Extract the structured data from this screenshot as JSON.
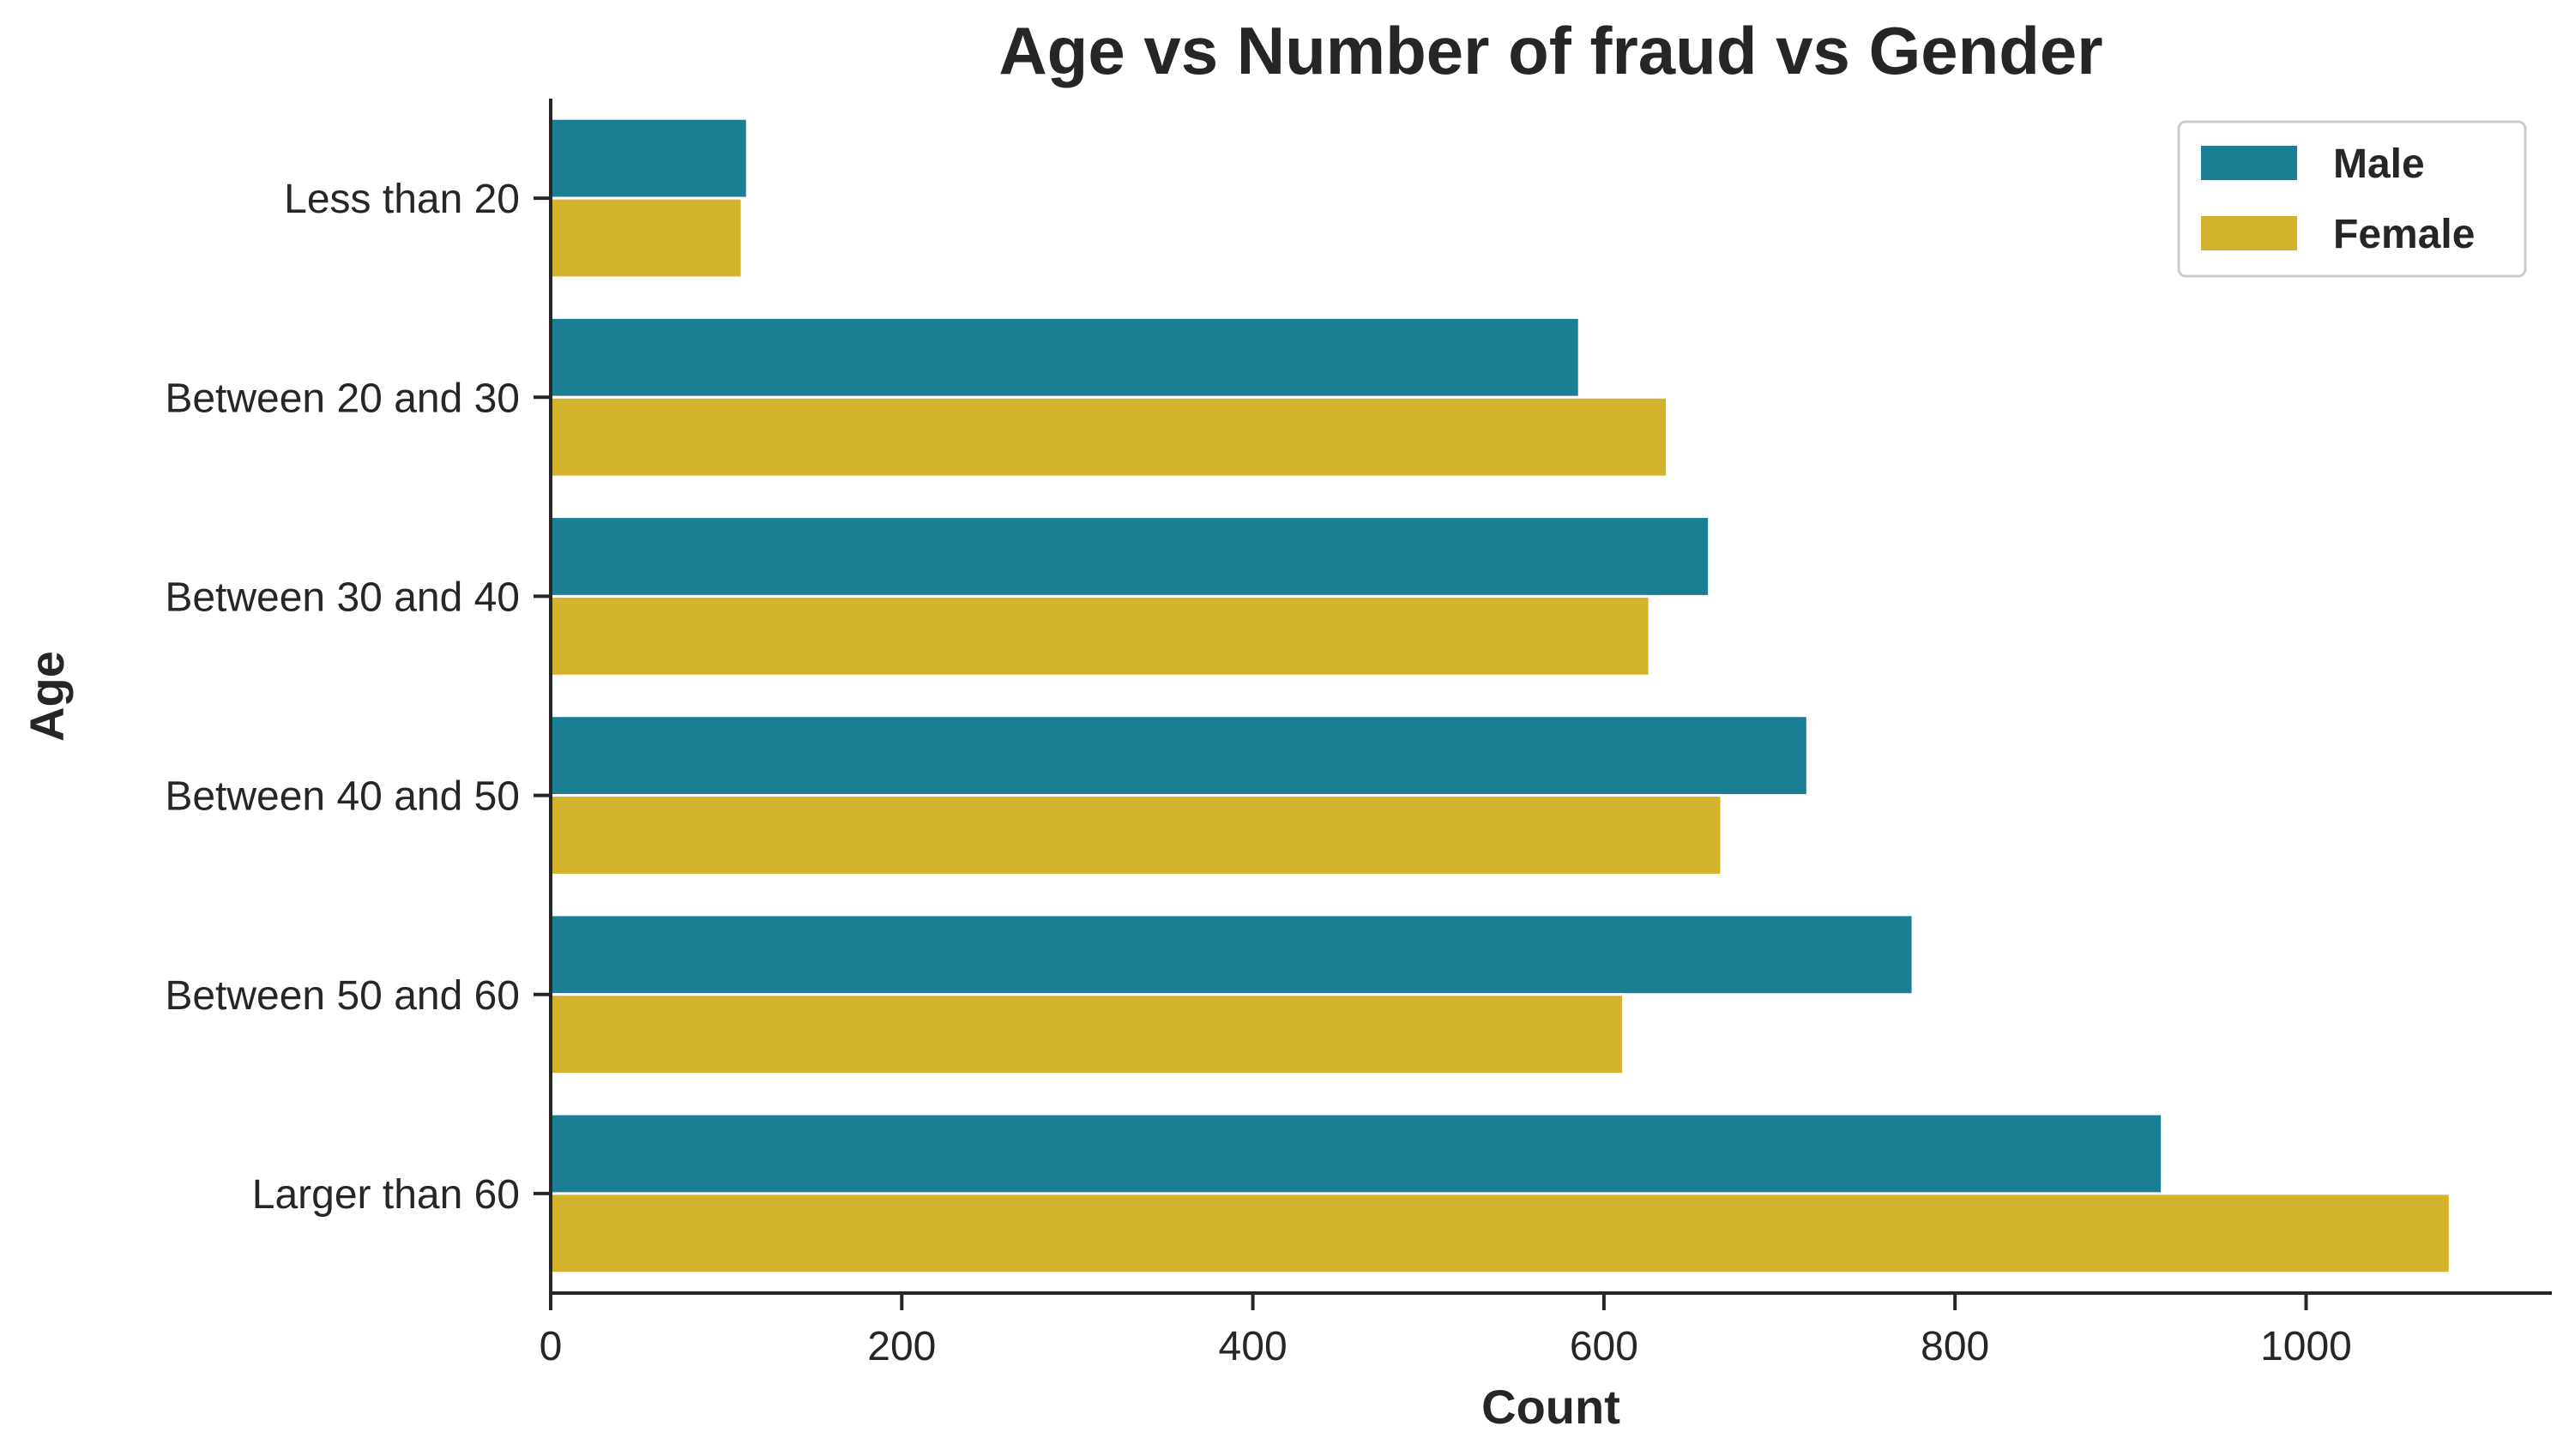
{
  "chart_data": {
    "type": "bar",
    "orientation": "horizontal",
    "title": "Age vs Number of fraud vs Gender",
    "xlabel": "Count",
    "ylabel": "Age",
    "categories": [
      "Less than 20",
      "Between 20 and 30",
      "Between 30 and 40",
      "Between 40 and 50",
      "Between 50 and 60",
      "Larger than 60"
    ],
    "series": [
      {
        "name": "Male",
        "color": "#1a7f95",
        "values": [
          112,
          586,
          660,
          716,
          776,
          918
        ]
      },
      {
        "name": "Female",
        "color": "#d4b22b",
        "values": [
          109,
          636,
          626,
          667,
          611,
          1082
        ]
      }
    ],
    "xlim": [
      0,
      1140
    ],
    "xticks": [
      0,
      200,
      400,
      600,
      800,
      1000
    ],
    "grid": false,
    "legend_position": "top-right"
  }
}
